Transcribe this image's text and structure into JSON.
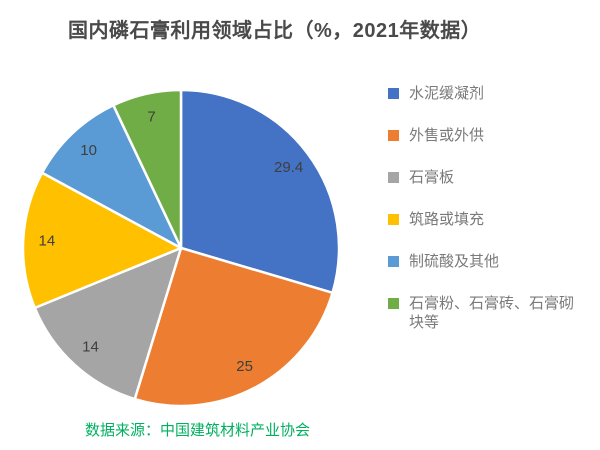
{
  "chart_data": {
    "type": "pie",
    "title": "国内磷石膏利用领域占比（%，2021年数据）",
    "categories": [
      "水泥缓凝剂",
      "外售或外供",
      "石膏板",
      "筑路或填充",
      "制硫酸及其他",
      "石膏粉、石膏砖、石膏砌块等"
    ],
    "values": [
      29.4,
      25,
      14,
      14,
      10,
      7
    ],
    "labels": [
      "29.4",
      "25",
      "14",
      "14",
      "10",
      "7"
    ],
    "slice_colors": [
      "#4472c4",
      "#ed7d31",
      "#a5a5a5",
      "#ffc000",
      "#5b9bd5",
      "#70ad47"
    ],
    "start_angle_deg": 0,
    "direction": "clockwise",
    "legend_position": "right",
    "slice_gap_color": "#ffffff"
  },
  "source_note": "数据来源：中国建筑材料产业协会",
  "colors": {
    "title_text": "#4a4a4a",
    "legend_text": "#7a7a7a",
    "data_label_text": "#3f3f3f",
    "source_text": "#00b05e",
    "background": "#ffffff"
  }
}
